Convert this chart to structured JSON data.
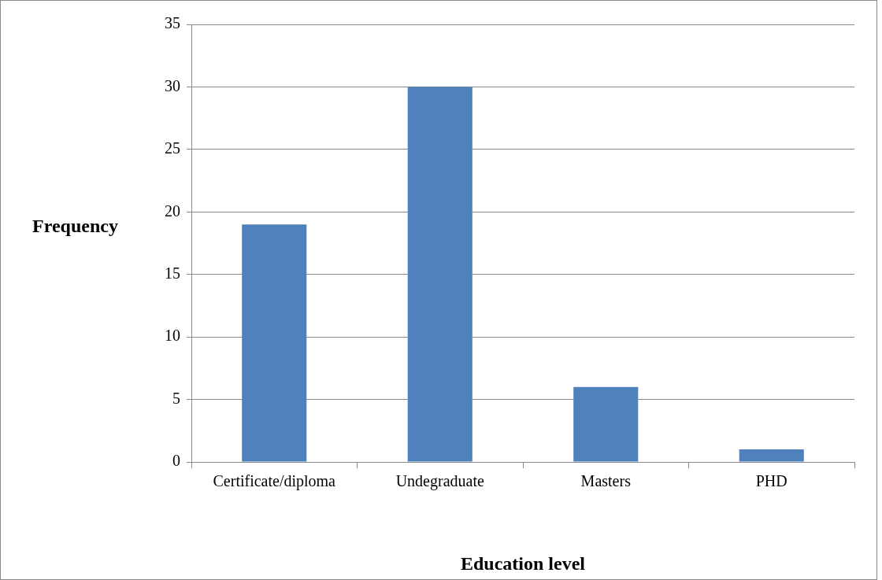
{
  "chart_data": {
    "type": "bar",
    "xlabel": "Education level",
    "ylabel": "Frequency",
    "categories": [
      "Certificate/diploma",
      "Undegraduate",
      "Masters",
      "PHD"
    ],
    "values": [
      19,
      30,
      6,
      1
    ],
    "color": "#4f81bd",
    "ylim": [
      0,
      35
    ],
    "yticks": [
      0,
      5,
      10,
      15,
      20,
      25,
      30,
      35
    ],
    "grid": "y",
    "legend": false
  }
}
